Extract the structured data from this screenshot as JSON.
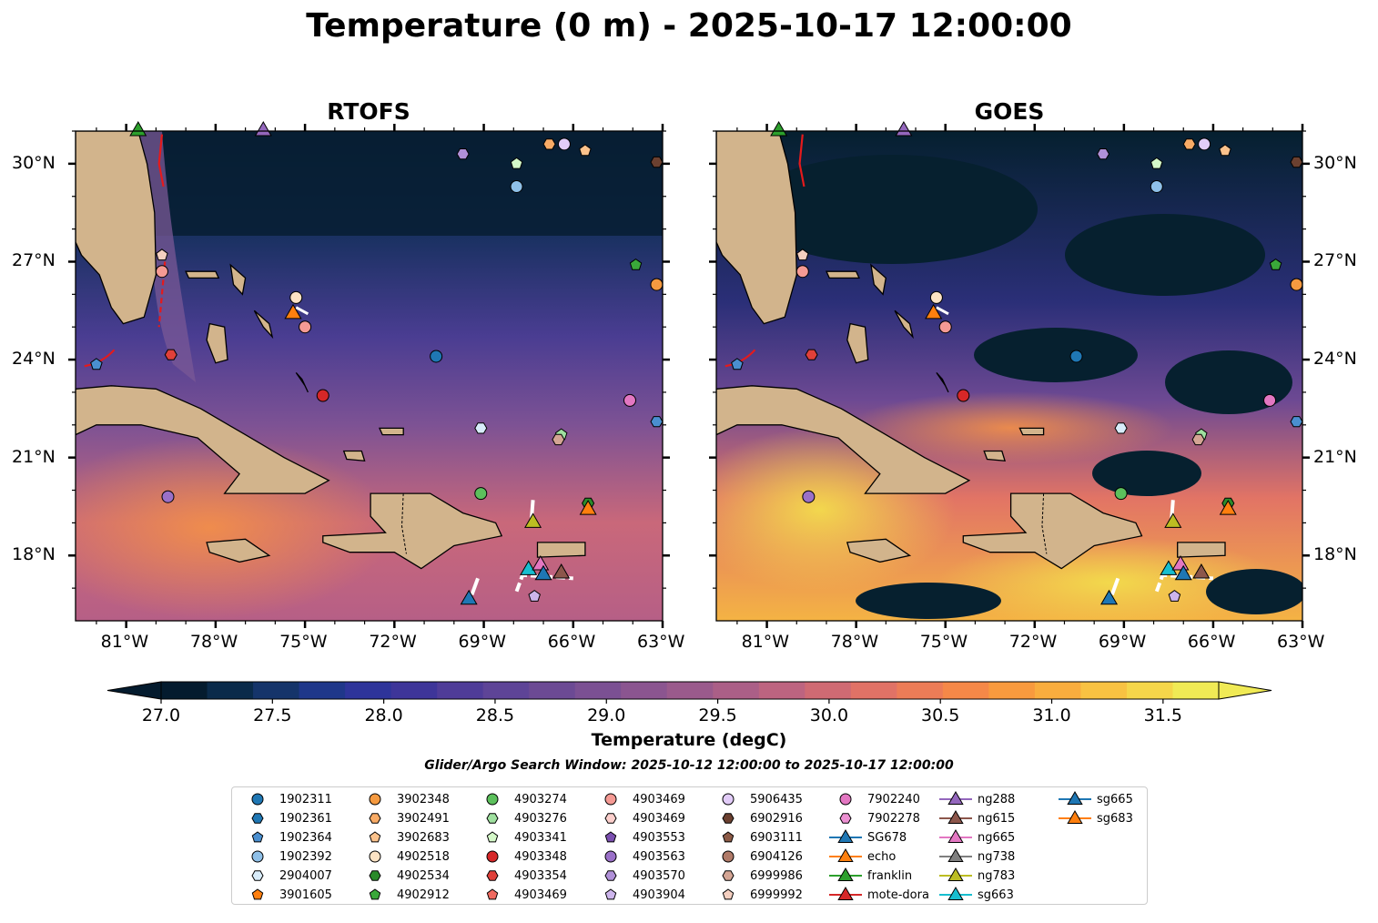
{
  "suptitle": "Temperature (0 m) - 2025-10-17 12:00:00",
  "panels": [
    {
      "title": "RTOFS"
    },
    {
      "title": "GOES"
    }
  ],
  "axes": {
    "lon_ticks": [
      "81°W",
      "78°W",
      "75°W",
      "72°W",
      "69°W",
      "66°W",
      "63°W"
    ],
    "lat_ticks": [
      "30°N",
      "27°N",
      "24°N",
      "21°N",
      "18°N"
    ]
  },
  "colorbar": {
    "ticks": [
      "27.0",
      "27.5",
      "28.0",
      "28.5",
      "29.0",
      "29.5",
      "30.0",
      "30.5",
      "31.0",
      "31.5"
    ],
    "label": "Temperature (degC)",
    "colors": [
      "#041b2e",
      "#0a2a4a",
      "#15346a",
      "#1f378a",
      "#2e349a",
      "#3e3599",
      "#4f3c98",
      "#5e4497",
      "#6c4a94",
      "#7b5093",
      "#8b5590",
      "#9a5a8c",
      "#ab5f87",
      "#bd6480",
      "#cf6a73",
      "#e07266",
      "#ec7c57",
      "#f58848",
      "#f89a3e",
      "#f9ad3e",
      "#f8c242",
      "#f5d64a",
      "#f0ea55"
    ]
  },
  "search_window": "Glider/Argo Search Window: 2025-10-12 12:00:00 to 2025-10-17 12:00:00",
  "legend": [
    {
      "label": "1902311",
      "marker": "circle",
      "color": "#1f77b4"
    },
    {
      "label": "1902361",
      "marker": "hexagon",
      "color": "#1f77b4"
    },
    {
      "label": "1902364",
      "marker": "pentagon",
      "color": "#4a8fd0"
    },
    {
      "label": "1902392",
      "marker": "circle",
      "color": "#8fc0e8"
    },
    {
      "label": "2904007",
      "marker": "hexagon",
      "color": "#d8ecfa"
    },
    {
      "label": "3901605",
      "marker": "pentagon",
      "color": "#ff7f0e"
    },
    {
      "label": "3902348",
      "marker": "circle",
      "color": "#f59a40"
    },
    {
      "label": "3902491",
      "marker": "hexagon",
      "color": "#f8ab66"
    },
    {
      "label": "3902683",
      "marker": "pentagon",
      "color": "#fbc28c"
    },
    {
      "label": "4902518",
      "marker": "circle",
      "color": "#fde3c4"
    },
    {
      "label": "4902534",
      "marker": "hexagon",
      "color": "#2a8a2a"
    },
    {
      "label": "4902912",
      "marker": "pentagon",
      "color": "#3aa83a"
    },
    {
      "label": "4903274",
      "marker": "circle",
      "color": "#5cc05c"
    },
    {
      "label": "4903276",
      "marker": "hexagon",
      "color": "#9fe09f"
    },
    {
      "label": "4903341",
      "marker": "pentagon",
      "color": "#d4f8c8"
    },
    {
      "label": "4903348",
      "marker": "circle",
      "color": "#d62728"
    },
    {
      "label": "4903354",
      "marker": "hexagon",
      "color": "#e0403a"
    },
    {
      "label": "4903469",
      "marker": "pentagon",
      "color": "#f06a60"
    },
    {
      "label": "4903469",
      "marker": "circle",
      "color": "#f59a94"
    },
    {
      "label": "4903469",
      "marker": "hexagon",
      "color": "#fccfcc"
    },
    {
      "label": "4903553",
      "marker": "pentagon",
      "color": "#7b4fb0"
    },
    {
      "label": "4903563",
      "marker": "circle",
      "color": "#9a70c8"
    },
    {
      "label": "4903570",
      "marker": "hexagon",
      "color": "#b090d8"
    },
    {
      "label": "4903904",
      "marker": "pentagon",
      "color": "#cdb5ec"
    },
    {
      "label": "5906435",
      "marker": "circle",
      "color": "#e2ccf8"
    },
    {
      "label": "6902916",
      "marker": "hexagon",
      "color": "#6b4030"
    },
    {
      "label": "6903111",
      "marker": "pentagon",
      "color": "#8c5a46"
    },
    {
      "label": "6904126",
      "marker": "circle",
      "color": "#b07a68"
    },
    {
      "label": "6999986",
      "marker": "hexagon",
      "color": "#d4a594"
    },
    {
      "label": "6999992",
      "marker": "pentagon",
      "color": "#f4cfc0"
    },
    {
      "label": "7902240",
      "marker": "circle",
      "color": "#e377c2"
    },
    {
      "label": "7902278",
      "marker": "hexagon",
      "color": "#ec90d2"
    },
    {
      "label": "SG678",
      "marker": "triangle-line",
      "color": "#1f77b4"
    },
    {
      "label": "echo",
      "marker": "triangle-line",
      "color": "#ff7f0e"
    },
    {
      "label": "franklin",
      "marker": "triangle-line",
      "color": "#2ca02c"
    },
    {
      "label": "mote-dora",
      "marker": "triangle-line",
      "color": "#d62728"
    },
    {
      "label": "ng288",
      "marker": "triangle-line",
      "color": "#9467bd"
    },
    {
      "label": "ng615",
      "marker": "triangle-line",
      "color": "#8c564b"
    },
    {
      "label": "ng665",
      "marker": "triangle-line",
      "color": "#e377c2"
    },
    {
      "label": "ng738",
      "marker": "triangle-line",
      "color": "#7f7f7f"
    },
    {
      "label": "ng783",
      "marker": "triangle-line",
      "color": "#bcbd22"
    },
    {
      "label": "sg663",
      "marker": "triangle-line",
      "color": "#17becf"
    },
    {
      "label": "sg665",
      "marker": "triangle-line",
      "color": "#1f77b4"
    },
    {
      "label": "sg683",
      "marker": "triangle-line",
      "color": "#ff7f0e"
    }
  ],
  "map_markers": [
    {
      "lon": -80.6,
      "lat": 31.0,
      "marker": "triangle",
      "color": "#2ca02c"
    },
    {
      "lon": -76.4,
      "lat": 31.0,
      "marker": "triangle",
      "color": "#9467bd"
    },
    {
      "lon": -69.7,
      "lat": 30.3,
      "marker": "hexagon",
      "color": "#b090d8"
    },
    {
      "lon": -67.9,
      "lat": 30.0,
      "marker": "pentagon",
      "color": "#d4f8c8"
    },
    {
      "lon": -66.8,
      "lat": 30.6,
      "marker": "hexagon",
      "color": "#f8ab66"
    },
    {
      "lon": -66.3,
      "lat": 30.6,
      "marker": "circle",
      "color": "#e2ccf8"
    },
    {
      "lon": -65.6,
      "lat": 30.4,
      "marker": "pentagon",
      "color": "#fbc28c"
    },
    {
      "lon": -63.2,
      "lat": 30.05,
      "marker": "hexagon",
      "color": "#6b4030"
    },
    {
      "lon": -67.9,
      "lat": 29.3,
      "marker": "circle",
      "color": "#8fc0e8"
    },
    {
      "lon": -79.8,
      "lat": 27.2,
      "marker": "pentagon",
      "color": "#f4cfc0"
    },
    {
      "lon": -79.8,
      "lat": 26.7,
      "marker": "circle",
      "color": "#f59a94"
    },
    {
      "lon": -63.9,
      "lat": 26.9,
      "marker": "pentagon",
      "color": "#3aa83a"
    },
    {
      "lon": -63.2,
      "lat": 26.3,
      "marker": "circle",
      "color": "#f59a40"
    },
    {
      "lon": -75.3,
      "lat": 25.9,
      "marker": "circle",
      "color": "#fde3c4"
    },
    {
      "lon": -75.4,
      "lat": 25.4,
      "marker": "triangle",
      "color": "#ff7f0e"
    },
    {
      "lon": -75.0,
      "lat": 25.0,
      "marker": "circle",
      "color": "#f59a94"
    },
    {
      "lon": -79.5,
      "lat": 24.15,
      "marker": "hexagon",
      "color": "#e0403a"
    },
    {
      "lon": -82.0,
      "lat": 23.85,
      "marker": "pentagon",
      "color": "#4a8fd0"
    },
    {
      "lon": -70.6,
      "lat": 24.1,
      "marker": "circle",
      "color": "#1f77b4"
    },
    {
      "lon": -74.4,
      "lat": 22.9,
      "marker": "circle",
      "color": "#d62728"
    },
    {
      "lon": -64.1,
      "lat": 22.75,
      "marker": "circle",
      "color": "#e377c2"
    },
    {
      "lon": -63.2,
      "lat": 22.1,
      "marker": "hexagon",
      "color": "#4a8fd0"
    },
    {
      "lon": -69.1,
      "lat": 21.9,
      "marker": "hexagon",
      "color": "#d8ecfa"
    },
    {
      "lon": -66.4,
      "lat": 21.7,
      "marker": "pentagon",
      "color": "#9fe09f"
    },
    {
      "lon": -66.5,
      "lat": 21.55,
      "marker": "hexagon",
      "color": "#d4a594"
    },
    {
      "lon": -79.6,
      "lat": 19.8,
      "marker": "circle",
      "color": "#9a70c8"
    },
    {
      "lon": -69.1,
      "lat": 19.9,
      "marker": "circle",
      "color": "#5cc05c"
    },
    {
      "lon": -67.35,
      "lat": 19.0,
      "marker": "triangle",
      "color": "#bcbd22"
    },
    {
      "lon": -65.5,
      "lat": 19.6,
      "marker": "hexagon",
      "color": "#2a8a2a"
    },
    {
      "lon": -65.5,
      "lat": 19.4,
      "marker": "triangle",
      "color": "#ff7f0e"
    },
    {
      "lon": -67.5,
      "lat": 17.55,
      "marker": "triangle",
      "color": "#17becf"
    },
    {
      "lon": -67.1,
      "lat": 17.7,
      "marker": "triangle",
      "color": "#e377c2"
    },
    {
      "lon": -67.0,
      "lat": 17.4,
      "marker": "triangle",
      "color": "#1f77b4"
    },
    {
      "lon": -66.4,
      "lat": 17.45,
      "marker": "triangle",
      "color": "#8c564b"
    },
    {
      "lon": -69.5,
      "lat": 16.65,
      "marker": "triangle",
      "color": "#1f77b4"
    },
    {
      "lon": -67.3,
      "lat": 16.75,
      "marker": "pentagon",
      "color": "#cdb5ec"
    }
  ]
}
